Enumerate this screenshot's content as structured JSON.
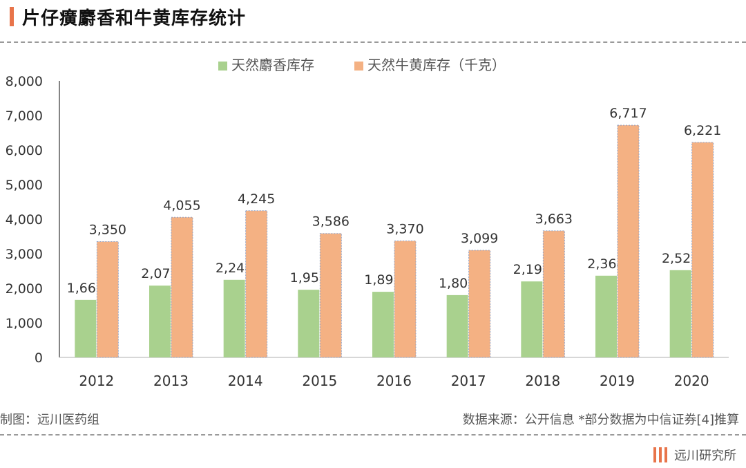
{
  "header": {
    "title": "片仔癀麝香和牛黄库存统计"
  },
  "footer": {
    "credit": "制图：远川医药组",
    "source": "数据来源：公开信息 *部分数据为中信证券[4]推算",
    "brand": "远川研究所"
  },
  "colors": {
    "accent": "#e8744a",
    "musk": "#a9d18e",
    "bezoar": "#f4b183"
  },
  "chart_data": {
    "type": "bar",
    "categories": [
      "2012",
      "2013",
      "2014",
      "2015",
      "2016",
      "2017",
      "2018",
      "2019",
      "2020"
    ],
    "series": [
      {
        "name": "天然麝香库存",
        "values": [
          1663,
          2077,
          2244,
          1957,
          1898,
          1802,
          2198,
          2364,
          2523
        ],
        "labels": [
          "1,663",
          "2,077",
          "2,244",
          "1,957",
          "1,898",
          "1,802",
          "2,198",
          "2,364",
          "2,523"
        ],
        "color": "#a9d18e"
      },
      {
        "name": "天然牛黄库存（千克）",
        "values": [
          3350,
          4055,
          4245,
          3586,
          3370,
          3099,
          3663,
          6717,
          6221
        ],
        "labels": [
          "3,350",
          "4,055",
          "4,245",
          "3,586",
          "3,370",
          "3,099",
          "3,663",
          "6,717",
          "6,221"
        ],
        "color": "#f4b183"
      }
    ],
    "yticks": [
      "0",
      "1,000",
      "2,000",
      "3,000",
      "4,000",
      "5,000",
      "6,000",
      "7,000",
      "8,000"
    ],
    "ylim": [
      0,
      8000
    ],
    "legend": "top-center",
    "grid": false
  }
}
